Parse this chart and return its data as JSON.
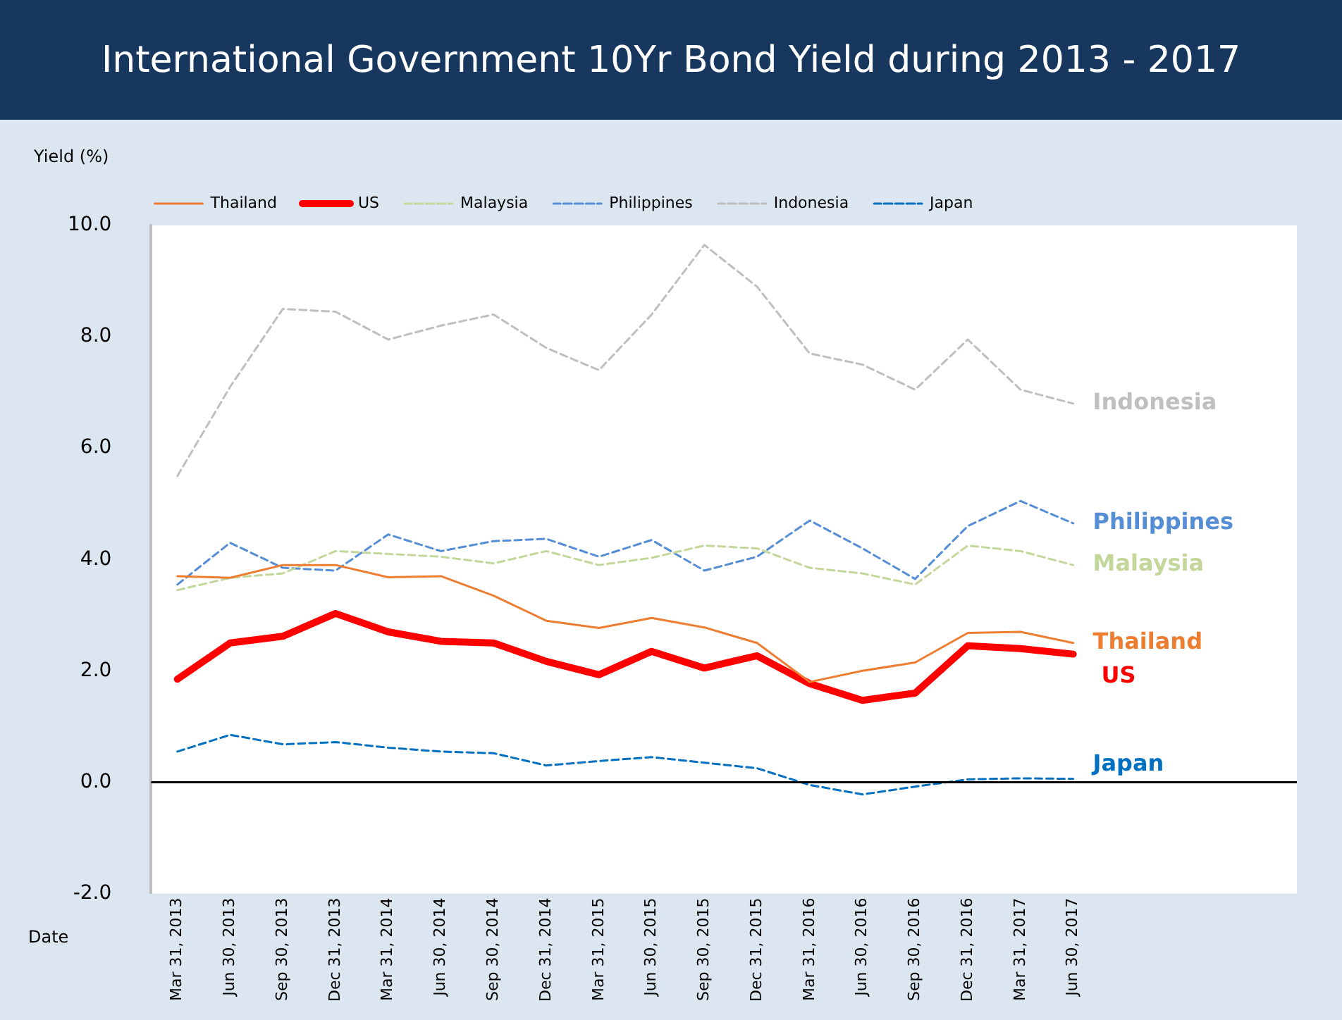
{
  "chart_data": {
    "type": "line",
    "title": "International Government 10Yr Bond Yield during 2013 - 2017",
    "ylabel": "Yield (%)",
    "xlabel": "Date",
    "categories": [
      "Mar 31, 2013",
      "Jun 30, 2013",
      "Sep 30, 2013",
      "Dec 31, 2013",
      "Mar 31, 2014",
      "Jun 30, 2014",
      "Sep 30, 2014",
      "Dec 31, 2014",
      "Mar 31, 2015",
      "Jun 30, 2015",
      "Sep 30, 2015",
      "Dec 31, 2015",
      "Mar 31, 2016",
      "Jun 30, 2016",
      "Sep 30, 2016",
      "Dec 31, 2016",
      "Mar 31, 2017",
      "Jun 30, 2017"
    ],
    "series": [
      {
        "name": "Thailand",
        "color": "#ed7d31",
        "line_style": "solid",
        "values": [
          3.7,
          3.67,
          3.9,
          3.9,
          3.68,
          3.7,
          3.35,
          2.9,
          2.77,
          2.95,
          2.78,
          2.5,
          1.8,
          2.0,
          2.15,
          2.68,
          2.7,
          2.5
        ]
      },
      {
        "name": "US",
        "color": "#ff0000",
        "line_style": "solid",
        "values": [
          1.85,
          2.5,
          2.62,
          3.03,
          2.7,
          2.53,
          2.5,
          2.17,
          1.93,
          2.35,
          2.05,
          2.27,
          1.77,
          1.47,
          1.6,
          2.45,
          2.4,
          2.3
        ]
      },
      {
        "name": "Malaysia",
        "color": "#c4d79b",
        "line_style": "dashed",
        "values": [
          3.45,
          3.67,
          3.75,
          4.15,
          4.1,
          4.05,
          3.93,
          4.15,
          3.9,
          4.03,
          4.25,
          4.2,
          3.85,
          3.75,
          3.55,
          4.25,
          4.15,
          3.9
        ]
      },
      {
        "name": "Philippines",
        "color": "#558ed5",
        "line_style": "dashed",
        "values": [
          3.55,
          4.3,
          3.85,
          3.8,
          4.45,
          4.15,
          4.33,
          4.37,
          4.05,
          4.35,
          3.8,
          4.05,
          4.7,
          4.2,
          3.65,
          4.6,
          5.05,
          4.65
        ]
      },
      {
        "name": "Indonesia",
        "color": "#bfbfbf",
        "line_style": "dashed",
        "values": [
          5.5,
          7.1,
          8.5,
          8.45,
          7.95,
          8.2,
          8.4,
          7.8,
          7.4,
          8.4,
          9.65,
          8.9,
          7.7,
          7.5,
          7.05,
          7.95,
          7.05,
          6.8
        ]
      },
      {
        "name": "Japan",
        "color": "#0070c0",
        "line_style": "dashed",
        "values": [
          0.55,
          0.85,
          0.68,
          0.72,
          0.62,
          0.55,
          0.52,
          0.3,
          0.38,
          0.45,
          0.35,
          0.25,
          -0.05,
          -0.22,
          -0.08,
          0.05,
          0.07,
          0.06
        ]
      }
    ],
    "ylim": [
      -2,
      10
    ],
    "yticks": [
      {
        "value": -2,
        "label": "-2.0"
      },
      {
        "value": 0,
        "label": "0.0"
      },
      {
        "value": 2,
        "label": "2.0"
      },
      {
        "value": 4,
        "label": "4.0"
      },
      {
        "value": 6,
        "label": "6.0"
      },
      {
        "value": 8,
        "label": "8.0"
      },
      {
        "value": 10,
        "label": "10.0"
      }
    ],
    "ref_lines": [
      {
        "axis": "y",
        "value": 0,
        "color": "#000000"
      }
    ],
    "grid": false,
    "legend": "top",
    "marker": "none"
  }
}
